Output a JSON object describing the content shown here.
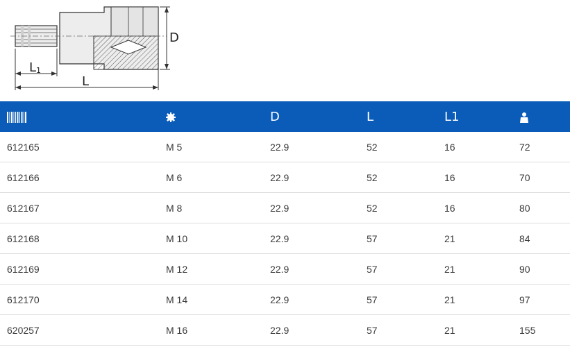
{
  "drawing": {
    "dim_d": "D",
    "dim_l": "L",
    "dim_l1_main": "L",
    "dim_l1_sub": "1"
  },
  "table": {
    "headers": [
      {
        "icon": "barcode-icon"
      },
      {
        "icon": "gear-icon"
      },
      {
        "label": "D"
      },
      {
        "label": "L"
      },
      {
        "label": "L1"
      },
      {
        "icon": "weight-icon"
      }
    ],
    "rows": [
      [
        "612165",
        "M 5",
        "22.9",
        "52",
        "16",
        "72"
      ],
      [
        "612166",
        "M 6",
        "22.9",
        "52",
        "16",
        "70"
      ],
      [
        "612167",
        "M 8",
        "22.9",
        "52",
        "16",
        "80"
      ],
      [
        "612168",
        "M 10",
        "22.9",
        "57",
        "21",
        "84"
      ],
      [
        "612169",
        "M 12",
        "22.9",
        "57",
        "21",
        "90"
      ],
      [
        "612170",
        "M 14",
        "22.9",
        "57",
        "21",
        "97"
      ],
      [
        "620257",
        "M 16",
        "22.9",
        "57",
        "21",
        "155"
      ]
    ]
  },
  "colors": {
    "header_bg": "#0a5cb8",
    "header_text": "#ffffff",
    "row_border": "#dddddd"
  }
}
